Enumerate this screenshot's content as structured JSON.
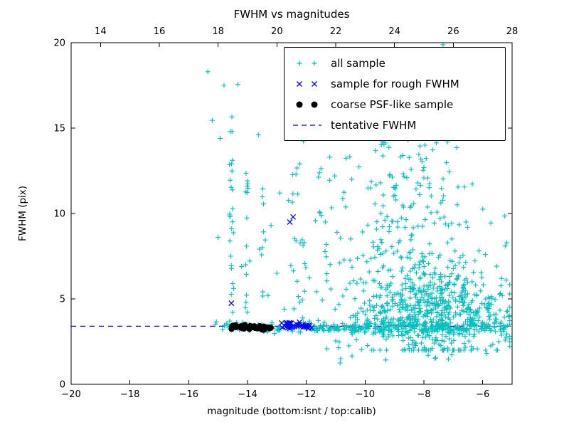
{
  "chart_data": {
    "type": "scatter",
    "title": "FWHM vs magnitudes",
    "xlabel": "magnitude (bottom:isnt / top:calib)",
    "ylabel": "FWHM (pix)",
    "grid": false,
    "legend_position": "upper center-right",
    "x_axis_bottom": {
      "range": [
        -20,
        -5
      ],
      "ticks": [
        -20,
        -18,
        -16,
        -14,
        -12,
        -10,
        -8,
        -6
      ],
      "labels": [
        "−20",
        "−18",
        "−16",
        "−14",
        "−12",
        "−10",
        "−8",
        "−6"
      ]
    },
    "x_axis_top": {
      "range": [
        13,
        28
      ],
      "ticks": [
        14,
        16,
        18,
        20,
        22,
        24,
        26,
        28
      ],
      "labels": [
        "14",
        "16",
        "18",
        "20",
        "22",
        "24",
        "26",
        "28"
      ]
    },
    "y_axis": {
      "range": [
        0,
        20
      ],
      "ticks": [
        0,
        5,
        10,
        15,
        20
      ],
      "labels": [
        "0",
        "5",
        "10",
        "15",
        "20"
      ]
    },
    "tentative_fwhm": 3.4,
    "colors": {
      "all_sample": "#00bfbf",
      "rough_fwhm": "#0000ff",
      "coarse_psf": "#000000",
      "tentative_line": "#0000ff"
    },
    "series_meta": [
      {
        "label": "all sample",
        "marker": "plus",
        "color": "#00bfbf"
      },
      {
        "label": "sample for rough FWHM",
        "marker": "x",
        "color": "#0000ff"
      },
      {
        "label": "coarse PSF-like sample",
        "marker": "dot",
        "color": "#000000"
      },
      {
        "label": "tentative FWHM",
        "marker": "dashed",
        "color": "#0000ff"
      }
    ],
    "series": {
      "all_sample": {
        "marker": "plus",
        "color": "#00bfbf",
        "clusters": [
          {
            "n": 260,
            "x": {
              "u": [
                -14.55,
                -5.1
              ]
            },
            "y": {
              "g": [
                3.33,
                0.13
              ]
            }
          },
          {
            "n": 140,
            "x": {
              "u": [
                -10.5,
                -5.1
              ]
            },
            "y": {
              "g": [
                3.45,
                0.35
              ]
            }
          },
          {
            "n": 620,
            "x": {
              "g": [
                -7.8,
                1.25,
                -11.3,
                -5.08
              ]
            },
            "y": {
              "g": [
                4.6,
                1.6,
                2.0,
                10.5
              ]
            }
          },
          {
            "n": 150,
            "x": {
              "g": [
                -8.5,
                1.15,
                -11.5,
                -5.1
              ]
            },
            "y": {
              "u": [
                7.0,
                15.3
              ]
            }
          },
          {
            "n": 50,
            "x": {
              "u": [
                -12.7,
                -10.6
              ]
            },
            "y": {
              "u": [
                3.6,
                13.0
              ]
            }
          },
          {
            "n": 24,
            "x": {
              "g": [
                -14.55,
                0.05
              ]
            },
            "y": {
              "u": [
                3.6,
                16.0
              ]
            }
          },
          {
            "n": 16,
            "x": {
              "g": [
                -14.02,
                0.05
              ]
            },
            "y": {
              "u": [
                3.6,
                13.0
              ]
            }
          },
          {
            "n": 10,
            "x": {
              "g": [
                -13.5,
                0.05
              ]
            },
            "y": {
              "u": [
                4.0,
                12.0
              ]
            }
          },
          {
            "n": 20,
            "x": {
              "u": [
                -11.0,
                -5.2
              ]
            },
            "y": {
              "u": [
                1.3,
                2.9
              ]
            }
          },
          {
            "n": 8,
            "x": {
              "u": [
                -15.3,
                -14.6
              ]
            },
            "y": {
              "g": [
                3.35,
                0.2
              ]
            }
          }
        ],
        "points": [
          [
            -15.35,
            18.3
          ],
          [
            -14.8,
            17.5
          ],
          [
            -14.33,
            17.55
          ],
          [
            -15.2,
            15.45
          ],
          [
            -14.93,
            14.4
          ],
          [
            -13.63,
            14.6
          ],
          [
            -12.1,
            14.25
          ],
          [
            -11.2,
            13.3
          ],
          [
            -7.35,
            19.9
          ],
          [
            -5.25,
            9.85
          ],
          [
            -5.2,
            6.1
          ],
          [
            -15.0,
            8.6
          ],
          [
            -10.85,
            1.25
          ],
          [
            -12.35,
            12.3
          ],
          [
            -12.9,
            11.2
          ],
          [
            -13.2,
            9.3
          ],
          [
            -13.0,
            6.5
          ],
          [
            -13.3,
            5.2
          ],
          [
            -12.75,
            4.4
          ],
          [
            -14.2,
            6.9
          ],
          [
            -14.6,
            8.4
          ],
          [
            -14.5,
            5.9
          ],
          [
            -14.05,
            4.8
          ]
        ]
      },
      "rough_fwhm": {
        "marker": "x",
        "color": "#0000ff",
        "clusters": [
          {
            "n": 34,
            "x": {
              "u": [
                -12.88,
                -11.8
              ]
            },
            "y": {
              "g": [
                3.45,
                0.12
              ]
            }
          }
        ],
        "points": [
          [
            -12.45,
            9.8
          ],
          [
            -12.56,
            9.5
          ],
          [
            -14.55,
            4.75
          ]
        ]
      },
      "coarse_psf": {
        "marker": "dot",
        "color": "#000000",
        "clusters": [
          {
            "n": 34,
            "x": {
              "u": [
                -14.58,
                -13.08
              ]
            },
            "y": {
              "g": [
                3.33,
                0.09
              ]
            }
          }
        ],
        "points": []
      }
    }
  }
}
